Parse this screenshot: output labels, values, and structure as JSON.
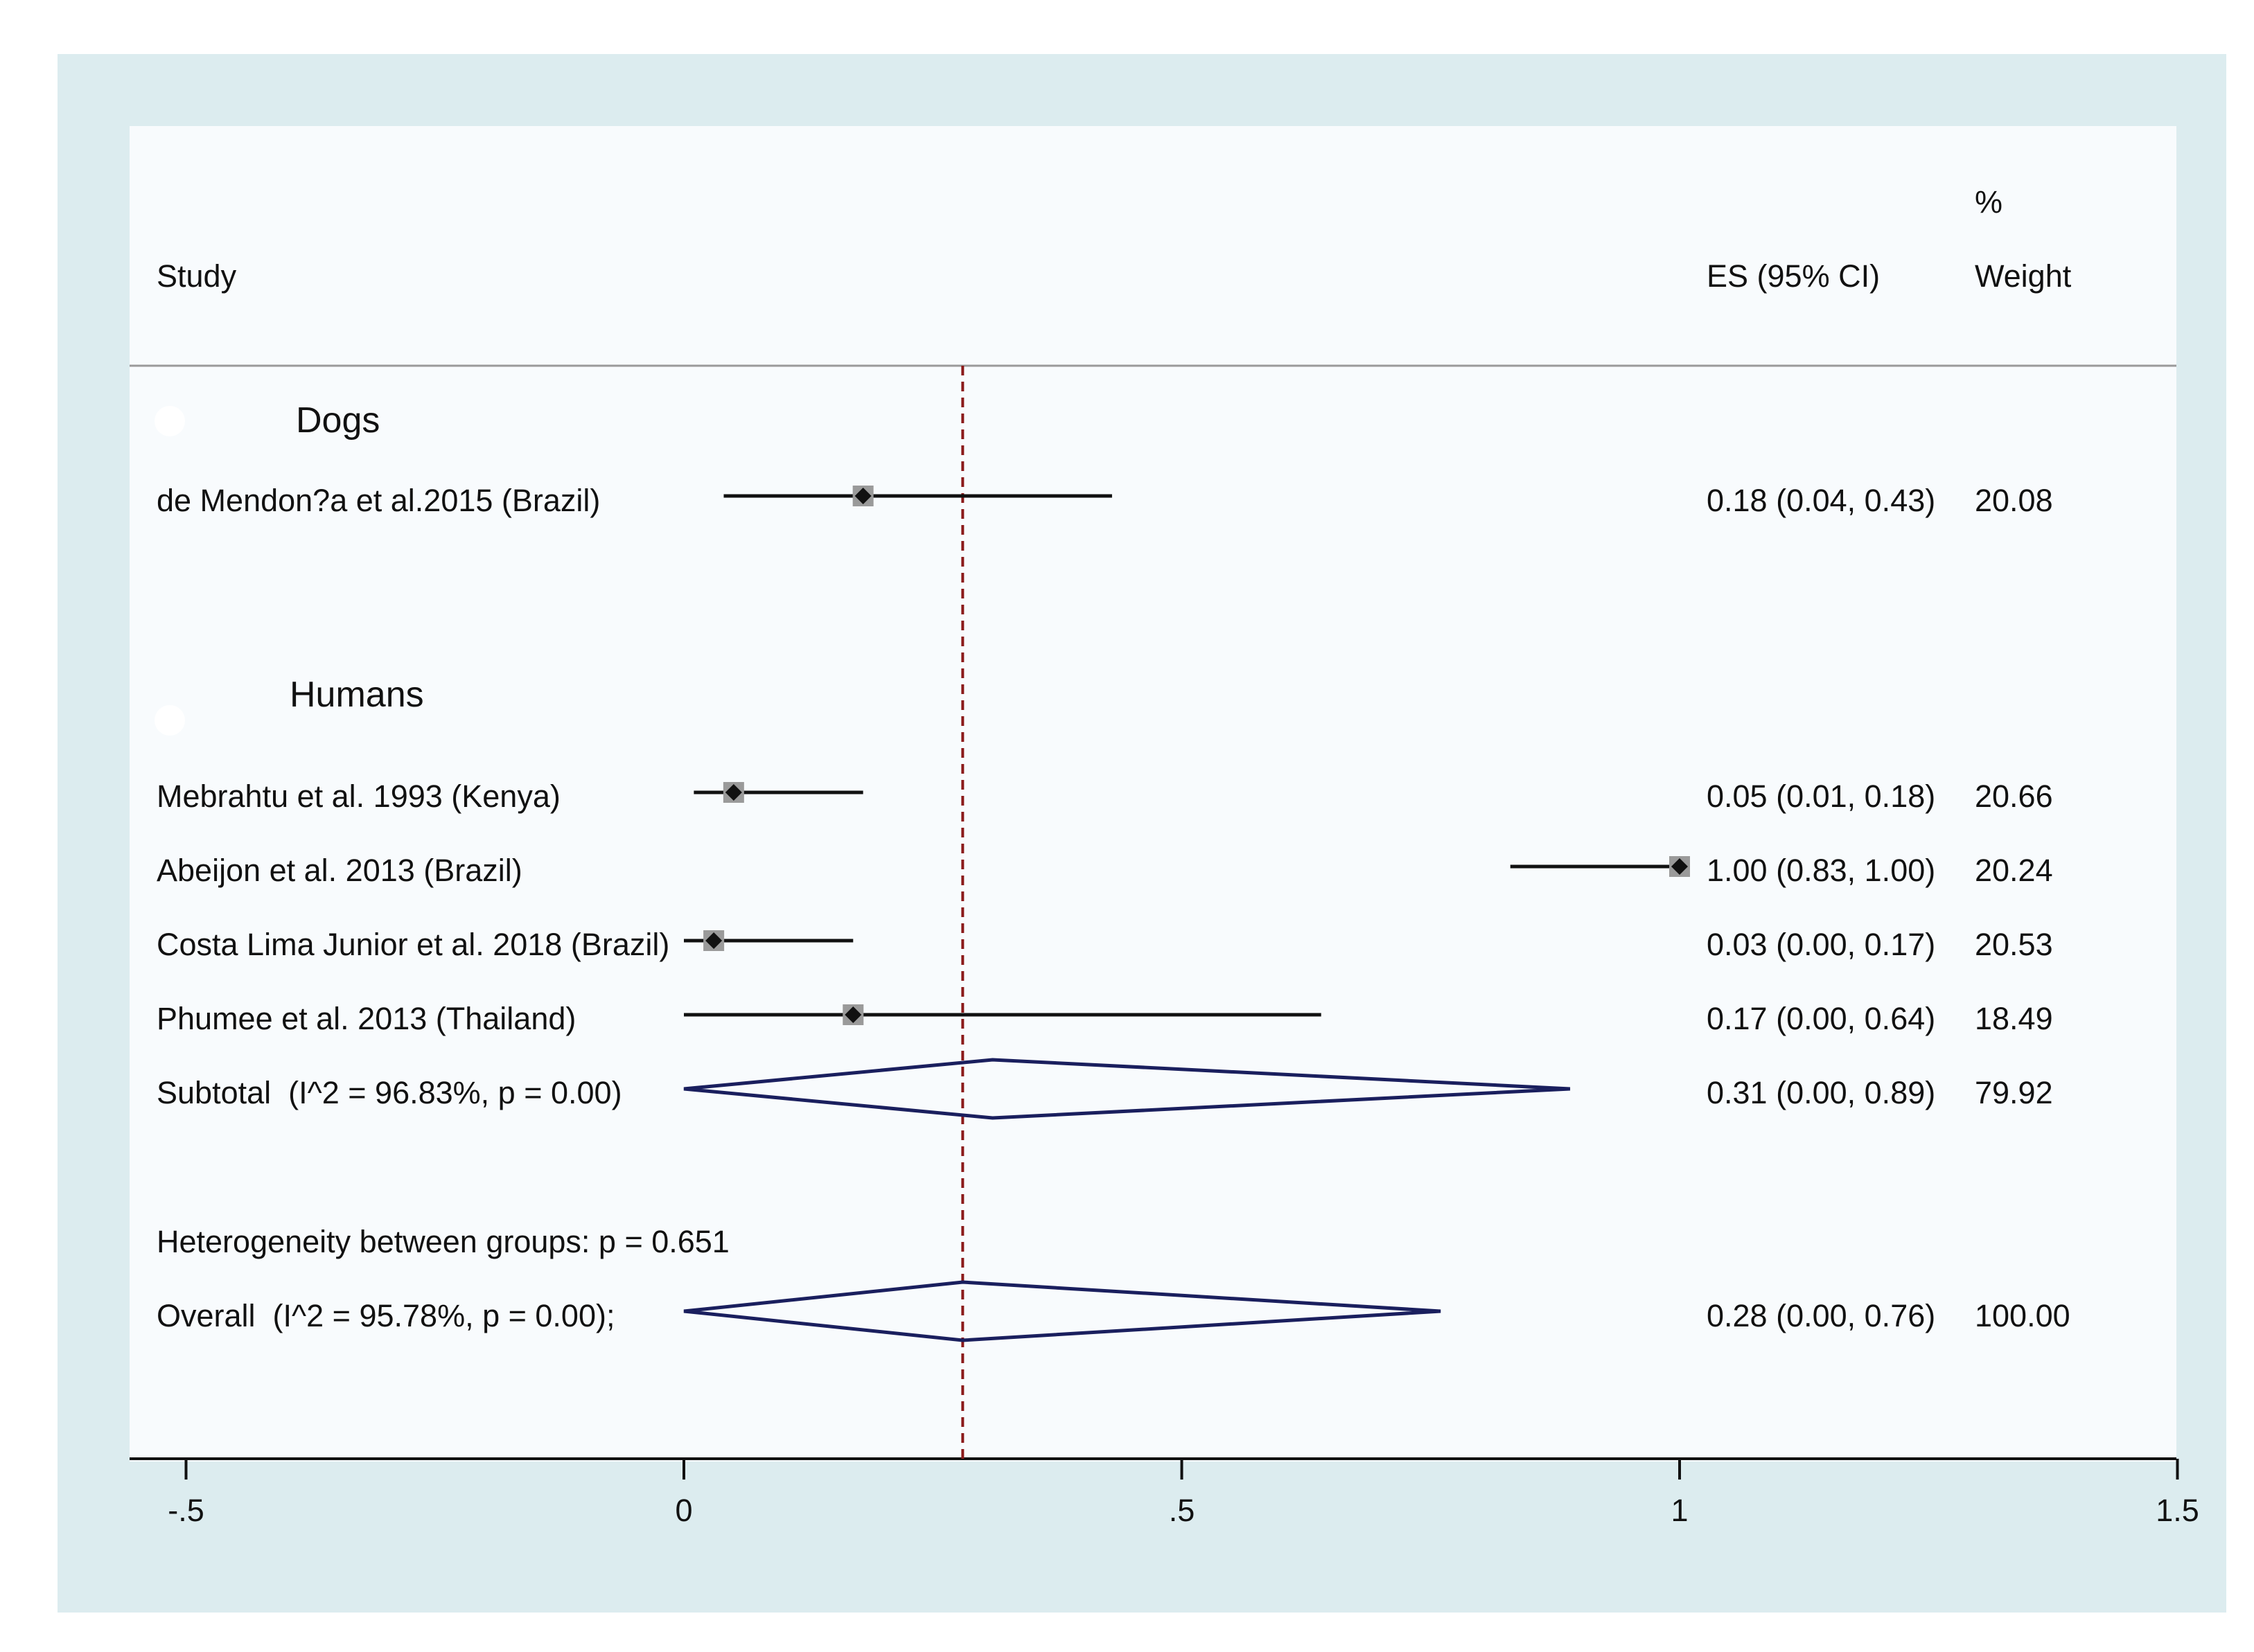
{
  "chart_data": {
    "type": "forest",
    "header": {
      "study": "Study",
      "es_ci": "ES (95% CI)",
      "weight_pct": "%",
      "weight": "Weight"
    },
    "x_ticks": [
      {
        "value": -0.5,
        "label": "-.5"
      },
      {
        "value": 0,
        "label": "0"
      },
      {
        "value": 0.5,
        "label": ".5"
      },
      {
        "value": 1,
        "label": "1"
      },
      {
        "value": 1.5,
        "label": "1.5"
      }
    ],
    "xlim": [
      -0.5,
      1.5
    ],
    "reference_line": 0.28,
    "groups": [
      {
        "name": "Dogs",
        "studies": [
          {
            "label": "de Mendon?a et al.2015 (Brazil)",
            "es": 0.18,
            "lo": 0.04,
            "hi": 0.43,
            "es_text": "0.18 (0.04, 0.43)",
            "weight": "20.08"
          }
        ]
      },
      {
        "name": "Humans",
        "studies": [
          {
            "label": "Mebrahtu et al. 1993 (Kenya)",
            "es": 0.05,
            "lo": 0.01,
            "hi": 0.18,
            "es_text": "0.05 (0.01, 0.18)",
            "weight": "20.66"
          },
          {
            "label": "Abeijon et al. 2013 (Brazil)",
            "es": 1.0,
            "lo": 0.83,
            "hi": 1.0,
            "es_text": "1.00 (0.83, 1.00)",
            "weight": "20.24"
          },
          {
            "label": "Costa Lima Junior et al. 2018 (Brazil)",
            "es": 0.03,
            "lo": 0.0,
            "hi": 0.17,
            "es_text": "0.03 (0.00, 0.17)",
            "weight": "20.53"
          },
          {
            "label": "Phumee et al. 2013 (Thailand)",
            "es": 0.17,
            "lo": 0.0,
            "hi": 0.64,
            "es_text": "0.17 (0.00, 0.64)",
            "weight": "18.49"
          }
        ],
        "subtotal": {
          "label": "Subtotal  (I^2 = 96.83%, p = 0.00)",
          "es": 0.31,
          "lo": 0.0,
          "hi": 0.89,
          "es_text": "0.31 (0.00, 0.89)",
          "weight": "79.92"
        }
      }
    ],
    "heterogeneity_text": "Heterogeneity between groups: p = 0.651",
    "overall": {
      "label": "Overall  (I^2 = 95.78%, p = 0.00);",
      "es": 0.28,
      "lo": 0.0,
      "hi": 0.76,
      "es_text": "0.28 (0.00, 0.76)",
      "weight": "100.00"
    },
    "colors": {
      "outer_background": "#dcecef",
      "plot_background": "#f8fbfd",
      "ci_line": "#111111",
      "marker_box": "#9a9a9a",
      "diamond": "#1a1f5e",
      "reference_line": "#8b1a1a"
    }
  }
}
